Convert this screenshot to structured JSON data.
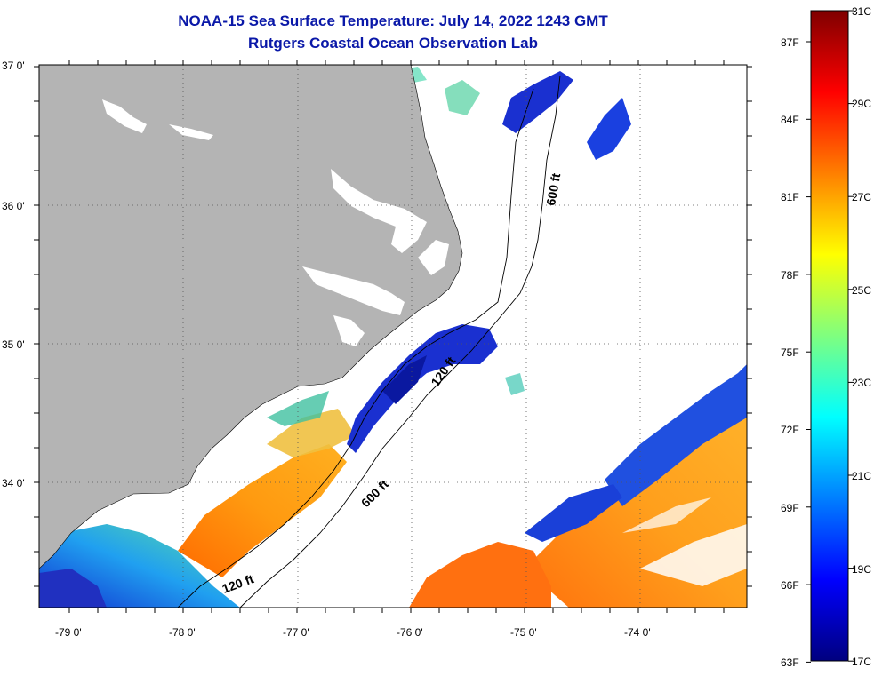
{
  "title": "NOAA-15 Sea Surface Temperature:  July 14, 2022 1243 GMT",
  "subtitle": "Rutgers Coastal Ocean Observation Lab",
  "map": {
    "lat_labels": [
      "37 0'",
      "36 0'",
      "35 0'",
      "34 0'"
    ],
    "lon_labels": [
      "-79 0'",
      "-78 0'",
      "-77 0'",
      "-76 0'",
      "-75 0'",
      "-74 0'"
    ],
    "contour_labels": [
      "600 ft",
      "120 ft",
      "600 ft",
      "120 ft"
    ],
    "colors": {
      "land": "#b4b4b4",
      "cloud": "#ffffff",
      "frame": "#000000"
    }
  },
  "colorbar": {
    "fahrenheit": [
      "87F",
      "84F",
      "81F",
      "78F",
      "75F",
      "72F",
      "69F",
      "66F",
      "63F"
    ],
    "celsius": [
      "31C",
      "29C",
      "27C",
      "25C",
      "23C",
      "21C",
      "19C",
      "17C"
    ],
    "stops": [
      "#00007f",
      "#0000ff",
      "#007fff",
      "#00ffff",
      "#7fff7f",
      "#ffff00",
      "#ff7f00",
      "#ff0000",
      "#7f0000"
    ]
  }
}
